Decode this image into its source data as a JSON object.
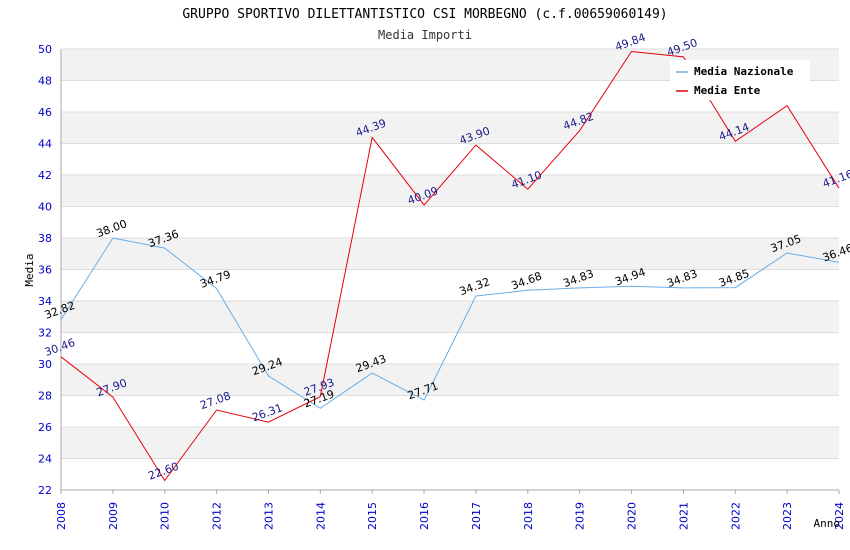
{
  "chart_data": {
    "type": "line",
    "title": "GRUPPO SPORTIVO DILETTANTISTICO CSI MORBEGNO (c.f.00659060149)",
    "subtitle": "Media Importi",
    "xlabel": "Anno",
    "ylabel": "Media",
    "ylim": [
      22,
      50
    ],
    "yticks": [
      "22",
      "24",
      "26",
      "28",
      "30",
      "32",
      "34",
      "36",
      "38",
      "40",
      "42",
      "44",
      "46",
      "48",
      "50"
    ],
    "grid": true,
    "legend_position": "top-right",
    "categories": [
      "2008",
      "2009",
      "2010",
      "2012",
      "2013",
      "2014",
      "2015",
      "2016",
      "2017",
      "2018",
      "2019",
      "2020",
      "2021",
      "2022",
      "2023",
      "2024"
    ],
    "series": [
      {
        "name": "Media Nazionale",
        "color": "#6aaee6",
        "label_color": "#000000",
        "values": [
          32.82,
          38.0,
          37.36,
          34.79,
          29.24,
          27.19,
          29.43,
          27.71,
          34.32,
          34.68,
          34.83,
          34.94,
          34.83,
          34.85,
          37.05,
          36.46
        ],
        "labels": [
          "32.82",
          "38.00",
          "37.36",
          "34.79",
          "29.24",
          "27.19",
          "29.43",
          "27.71",
          "34.32",
          "34.68",
          "34.83",
          "34.94",
          "34.83",
          "34.85",
          "37.05",
          "36.46"
        ]
      },
      {
        "name": "Media Ente",
        "color": "#e8000b",
        "label_color": "#1a1a8c",
        "values": [
          30.46,
          27.9,
          22.6,
          27.08,
          26.31,
          27.93,
          44.39,
          40.09,
          43.9,
          41.1,
          44.82,
          49.84,
          49.5,
          44.14,
          46.4,
          41.16
        ],
        "labels": [
          "30.46",
          "27.90",
          "22.60",
          "27.08",
          "26.31",
          "27.93",
          "44.39",
          "40.09",
          "43.90",
          "41.10",
          "44.82",
          "49.84",
          "49.50",
          "44.14",
          "",
          "41.16"
        ]
      }
    ],
    "colors": {
      "axis_tick_text": "#0000cc",
      "band": "#f2f2f2",
      "gridline": "#dddddd",
      "axis": "#aaaaaa"
    }
  }
}
